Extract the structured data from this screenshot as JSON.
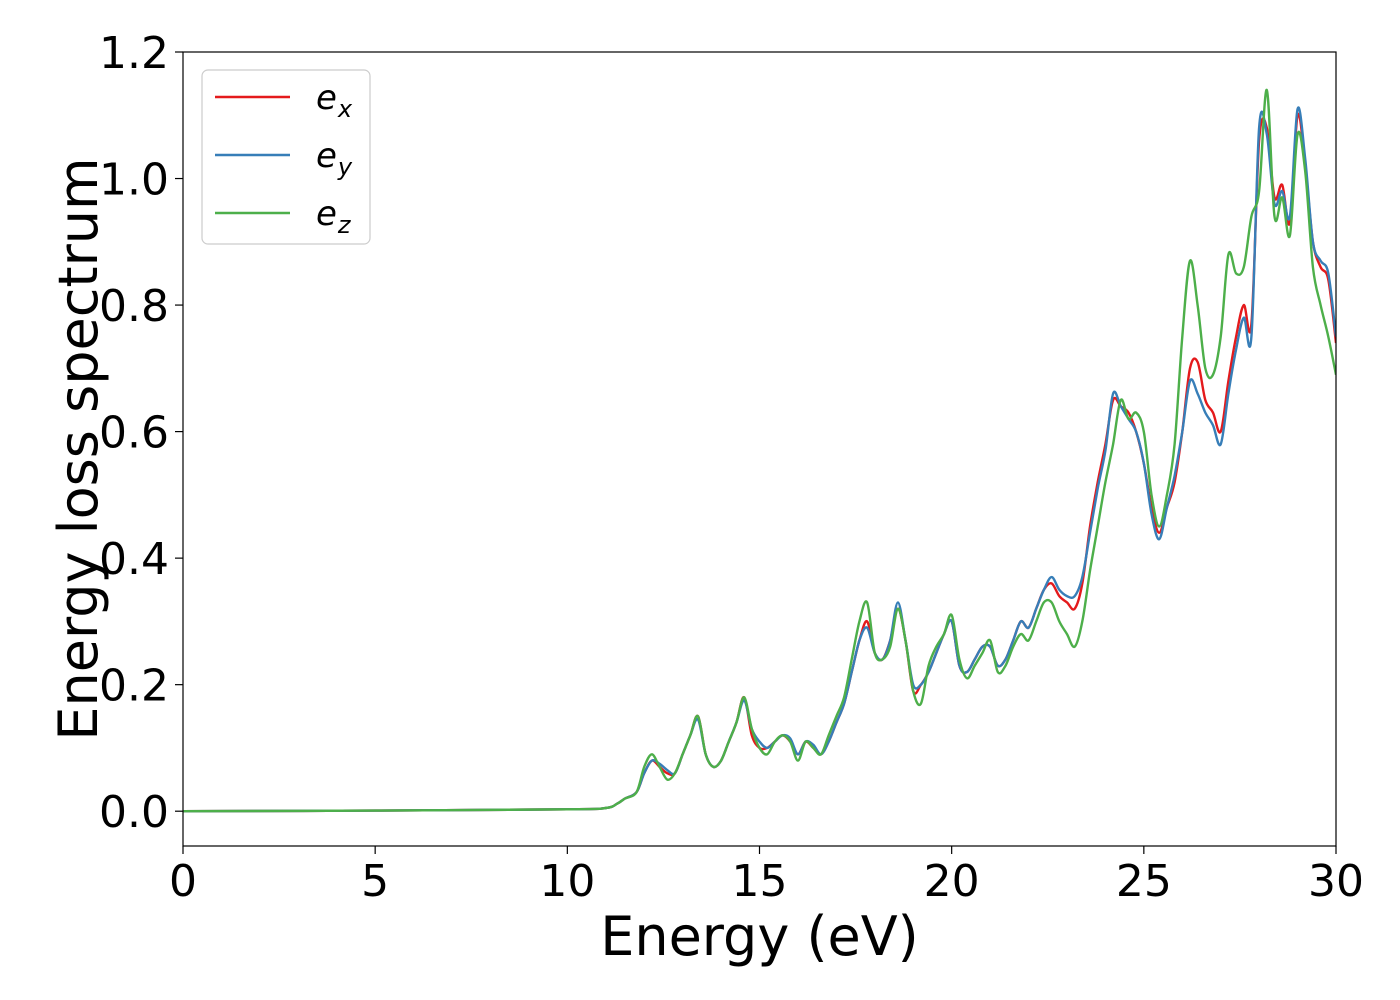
{
  "chart_data": {
    "type": "line",
    "title": "",
    "xlabel": "Energy (eV)",
    "ylabel": "Energy loss spectrum",
    "xlim": [
      0,
      30
    ],
    "ylim": [
      -0.055,
      1.2
    ],
    "xticks": [
      0,
      5,
      10,
      15,
      20,
      25,
      30
    ],
    "xtick_labels": [
      "0",
      "5",
      "10",
      "15",
      "20",
      "25",
      "30"
    ],
    "yticks": [
      0.0,
      0.2,
      0.4,
      0.6,
      0.8,
      1.0,
      1.2
    ],
    "ytick_labels": [
      "0.0",
      "0.2",
      "0.4",
      "0.6",
      "0.8",
      "1.0",
      "1.2"
    ],
    "grid": false,
    "legend_position": "top-left",
    "series": [
      {
        "name": "e_x",
        "label_base": "e",
        "label_sub": "x",
        "color": "#e41a1c",
        "x": [
          0,
          5,
          10,
          11,
          11.3,
          11.5,
          11.8,
          12.0,
          12.2,
          12.4,
          12.6,
          12.8,
          13.0,
          13.2,
          13.4,
          13.6,
          13.8,
          14.0,
          14.2,
          14.4,
          14.6,
          14.8,
          15.0,
          15.2,
          15.4,
          15.6,
          15.8,
          16.0,
          16.2,
          16.4,
          16.6,
          16.8,
          17.0,
          17.2,
          17.4,
          17.6,
          17.8,
          18.0,
          18.2,
          18.4,
          18.6,
          18.8,
          19.0,
          19.2,
          19.4,
          19.6,
          19.8,
          20.0,
          20.2,
          20.4,
          20.6,
          20.8,
          21.0,
          21.2,
          21.4,
          21.6,
          21.8,
          22.0,
          22.2,
          22.4,
          22.6,
          22.8,
          23.0,
          23.2,
          23.4,
          23.6,
          23.8,
          24.0,
          24.2,
          24.4,
          24.6,
          24.8,
          25.0,
          25.2,
          25.4,
          25.6,
          25.8,
          26.0,
          26.2,
          26.4,
          26.6,
          26.8,
          27.0,
          27.2,
          27.4,
          27.6,
          27.8,
          28.0,
          28.2,
          28.4,
          28.6,
          28.8,
          29.0,
          29.2,
          29.4,
          29.6,
          29.8,
          30.0
        ],
        "values": [
          0.0,
          0.001,
          0.003,
          0.005,
          0.012,
          0.02,
          0.03,
          0.06,
          0.08,
          0.07,
          0.06,
          0.06,
          0.09,
          0.12,
          0.15,
          0.09,
          0.07,
          0.08,
          0.11,
          0.14,
          0.18,
          0.12,
          0.1,
          0.1,
          0.11,
          0.12,
          0.11,
          0.09,
          0.11,
          0.1,
          0.09,
          0.11,
          0.14,
          0.17,
          0.22,
          0.27,
          0.3,
          0.25,
          0.24,
          0.27,
          0.32,
          0.27,
          0.19,
          0.2,
          0.22,
          0.25,
          0.28,
          0.3,
          0.23,
          0.22,
          0.24,
          0.26,
          0.26,
          0.23,
          0.24,
          0.27,
          0.3,
          0.29,
          0.32,
          0.35,
          0.36,
          0.34,
          0.33,
          0.32,
          0.36,
          0.45,
          0.52,
          0.58,
          0.65,
          0.64,
          0.63,
          0.6,
          0.55,
          0.48,
          0.44,
          0.48,
          0.52,
          0.6,
          0.7,
          0.71,
          0.65,
          0.63,
          0.6,
          0.68,
          0.75,
          0.8,
          0.77,
          1.06,
          1.08,
          0.97,
          0.99,
          0.93,
          1.1,
          1.02,
          0.9,
          0.86,
          0.84,
          0.74
        ]
      },
      {
        "name": "e_y",
        "label_base": "e",
        "label_sub": "y",
        "color": "#377eb8",
        "x": [
          0,
          5,
          10,
          11,
          11.3,
          11.5,
          11.8,
          12.0,
          12.2,
          12.4,
          12.6,
          12.8,
          13.0,
          13.2,
          13.4,
          13.6,
          13.8,
          14.0,
          14.2,
          14.4,
          14.6,
          14.8,
          15.0,
          15.2,
          15.4,
          15.6,
          15.8,
          16.0,
          16.2,
          16.4,
          16.6,
          16.8,
          17.0,
          17.2,
          17.4,
          17.6,
          17.8,
          18.0,
          18.2,
          18.4,
          18.6,
          18.8,
          19.0,
          19.2,
          19.4,
          19.6,
          19.8,
          20.0,
          20.2,
          20.4,
          20.6,
          20.8,
          21.0,
          21.2,
          21.4,
          21.6,
          21.8,
          22.0,
          22.2,
          22.4,
          22.6,
          22.8,
          23.0,
          23.2,
          23.4,
          23.6,
          23.8,
          24.0,
          24.2,
          24.4,
          24.6,
          24.8,
          25.0,
          25.2,
          25.4,
          25.6,
          25.8,
          26.0,
          26.2,
          26.4,
          26.6,
          26.8,
          27.0,
          27.2,
          27.4,
          27.6,
          27.8,
          28.0,
          28.2,
          28.4,
          28.6,
          28.8,
          29.0,
          29.2,
          29.4,
          29.6,
          29.8,
          30.0
        ],
        "values": [
          0.0,
          0.001,
          0.003,
          0.005,
          0.012,
          0.02,
          0.03,
          0.06,
          0.08,
          0.075,
          0.065,
          0.06,
          0.09,
          0.12,
          0.145,
          0.09,
          0.07,
          0.08,
          0.11,
          0.14,
          0.175,
          0.13,
          0.11,
          0.1,
          0.11,
          0.12,
          0.115,
          0.09,
          0.11,
          0.105,
          0.09,
          0.11,
          0.14,
          0.17,
          0.22,
          0.27,
          0.29,
          0.25,
          0.24,
          0.27,
          0.33,
          0.27,
          0.2,
          0.2,
          0.22,
          0.25,
          0.28,
          0.3,
          0.23,
          0.22,
          0.24,
          0.26,
          0.26,
          0.23,
          0.24,
          0.27,
          0.3,
          0.29,
          0.32,
          0.35,
          0.37,
          0.35,
          0.34,
          0.34,
          0.37,
          0.44,
          0.51,
          0.57,
          0.66,
          0.64,
          0.62,
          0.6,
          0.55,
          0.47,
          0.43,
          0.48,
          0.53,
          0.6,
          0.68,
          0.66,
          0.63,
          0.61,
          0.58,
          0.66,
          0.73,
          0.78,
          0.75,
          1.08,
          1.07,
          0.96,
          0.98,
          0.94,
          1.11,
          1.03,
          0.9,
          0.87,
          0.85,
          0.75
        ]
      },
      {
        "name": "e_z",
        "label_base": "e",
        "label_sub": "z",
        "color": "#4daf4a",
        "x": [
          0,
          5,
          10,
          11,
          11.3,
          11.5,
          11.8,
          12.0,
          12.2,
          12.4,
          12.6,
          12.8,
          13.0,
          13.2,
          13.4,
          13.6,
          13.8,
          14.0,
          14.2,
          14.4,
          14.6,
          14.8,
          15.0,
          15.2,
          15.4,
          15.6,
          15.8,
          16.0,
          16.2,
          16.4,
          16.6,
          16.8,
          17.0,
          17.2,
          17.4,
          17.6,
          17.8,
          18.0,
          18.2,
          18.4,
          18.6,
          18.8,
          19.0,
          19.2,
          19.4,
          19.6,
          19.8,
          20.0,
          20.2,
          20.4,
          20.6,
          20.8,
          21.0,
          21.2,
          21.4,
          21.6,
          21.8,
          22.0,
          22.2,
          22.4,
          22.6,
          22.8,
          23.0,
          23.2,
          23.4,
          23.6,
          23.8,
          24.0,
          24.2,
          24.4,
          24.6,
          24.8,
          25.0,
          25.2,
          25.4,
          25.6,
          25.8,
          26.0,
          26.2,
          26.4,
          26.6,
          26.8,
          27.0,
          27.2,
          27.4,
          27.6,
          27.8,
          28.0,
          28.2,
          28.4,
          28.6,
          28.8,
          29.0,
          29.2,
          29.4,
          29.6,
          29.8,
          30.0
        ],
        "values": [
          0.0,
          0.001,
          0.003,
          0.005,
          0.012,
          0.02,
          0.03,
          0.07,
          0.09,
          0.07,
          0.05,
          0.06,
          0.09,
          0.12,
          0.15,
          0.09,
          0.07,
          0.08,
          0.11,
          0.14,
          0.18,
          0.13,
          0.1,
          0.09,
          0.11,
          0.12,
          0.11,
          0.08,
          0.11,
          0.1,
          0.09,
          0.12,
          0.15,
          0.18,
          0.24,
          0.3,
          0.33,
          0.25,
          0.24,
          0.26,
          0.32,
          0.27,
          0.19,
          0.17,
          0.23,
          0.26,
          0.28,
          0.31,
          0.24,
          0.21,
          0.23,
          0.25,
          0.27,
          0.22,
          0.23,
          0.26,
          0.28,
          0.27,
          0.3,
          0.33,
          0.33,
          0.3,
          0.28,
          0.26,
          0.3,
          0.38,
          0.45,
          0.52,
          0.58,
          0.65,
          0.62,
          0.63,
          0.6,
          0.5,
          0.45,
          0.5,
          0.58,
          0.75,
          0.87,
          0.8,
          0.7,
          0.69,
          0.75,
          0.88,
          0.85,
          0.86,
          0.94,
          0.98,
          1.14,
          0.94,
          0.97,
          0.91,
          1.07,
          1.01,
          0.86,
          0.8,
          0.75,
          0.69
        ]
      }
    ]
  }
}
